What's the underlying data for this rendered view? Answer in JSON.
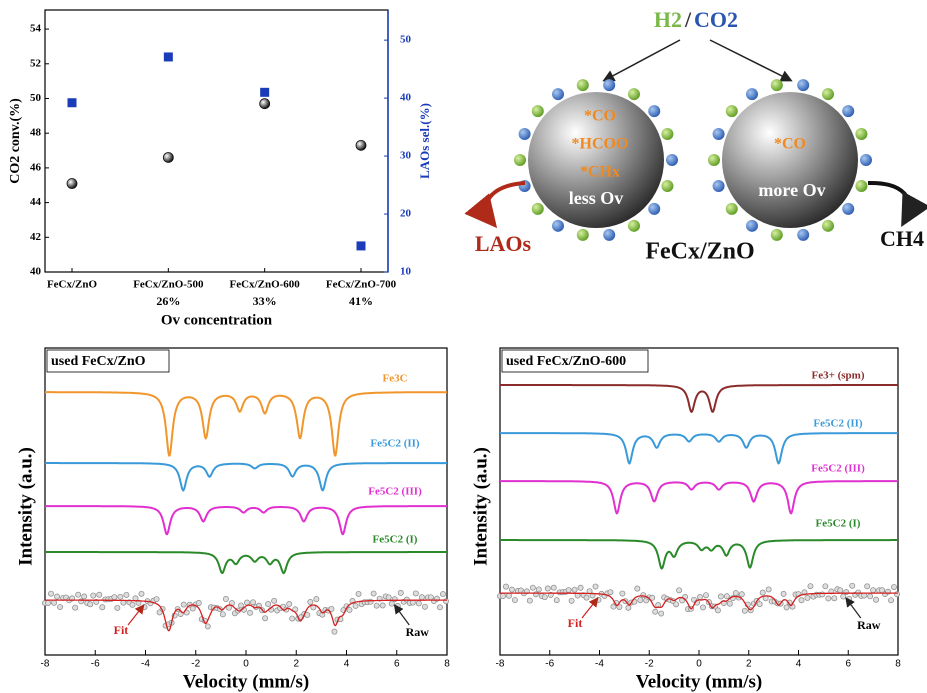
{
  "chart_data": [
    {
      "type": "scatter",
      "categories": [
        "FeCx/ZnO",
        "FeCx/ZnO-500",
        "FeCx/ZnO-600",
        "FeCx/ZnO-700"
      ],
      "category_sublabels": [
        "26%",
        "33%",
        "41%"
      ],
      "xlabel": "Ov concentration",
      "ylabel": "CO2 conv.(%)",
      "y2label": "LAOs sel.(%)",
      "ylim": [
        40,
        55.1
      ],
      "yticks": [
        40,
        42,
        44,
        46,
        48,
        50,
        52,
        54
      ],
      "y2lim": [
        10,
        55.2
      ],
      "y2ticks": [
        10,
        20,
        30,
        40,
        50
      ],
      "y2color": "#1a3cb8",
      "series": [
        {
          "color": "#111111",
          "marker": "sphere",
          "values": [
            45.1,
            46.6,
            49.7,
            47.3
          ]
        },
        {
          "color": "#1a3cb8",
          "marker": "square",
          "axis": "y2",
          "values": [
            39.2,
            47.1,
            41.0,
            14.5
          ]
        }
      ]
    },
    {
      "type": "spectrum",
      "title": "used FeCx/ZnO",
      "xlabel": "Velocity (mm/s)",
      "ylabel": "Intensity (a.u.)",
      "xlim": [
        -8,
        8
      ],
      "xticks": [
        -8,
        -6,
        -4,
        -2,
        0,
        2,
        4,
        6,
        8
      ],
      "series": [
        {
          "name": "Fe3C",
          "color": "#f0962c",
          "x": [
            -3.05,
            -1.6,
            -0.25,
            0.75,
            2.15,
            3.55
          ],
          "values": [
            63,
            45,
            18,
            20,
            45,
            63
          ]
        },
        {
          "name": "Fe5C2 (II)",
          "color": "#3a9ad9",
          "x": [
            -2.5,
            -1.45,
            0.35,
            1.85,
            3.05
          ],
          "values": [
            27,
            13,
            5,
            13,
            27
          ]
        },
        {
          "name": "Fe5C2 (III)",
          "color": "#e030d0",
          "x": [
            -3.15,
            -1.7,
            -0.1,
            0.7,
            2.3,
            3.85
          ],
          "values": [
            28,
            15,
            6,
            6,
            15,
            28
          ]
        },
        {
          "name": "Fe5C2 (I)",
          "color": "#2a8a2a",
          "x": [
            -0.95,
            -0.4,
            0.35,
            0.95,
            1.5
          ],
          "values": [
            20,
            10,
            8,
            10,
            20
          ]
        }
      ],
      "fit": {
        "name": "Fit",
        "color": "#d42020"
      },
      "raw": {
        "name": "Raw",
        "color": "#888888"
      }
    },
    {
      "type": "spectrum",
      "title": "used FeCx/ZnO-600",
      "xlabel": "Velocity (mm/s)",
      "ylabel": "Intensity (a.u.)",
      "xlim": [
        -8,
        8
      ],
      "xticks": [
        -8,
        -6,
        -4,
        -2,
        0,
        2,
        4,
        6,
        8
      ],
      "series": [
        {
          "name": "Fe3+ (spm)",
          "color": "#8b2c2c",
          "x": [
            -0.3,
            0.55
          ],
          "values": [
            26,
            26
          ]
        },
        {
          "name": "Fe5C2 (II)",
          "color": "#3a9ad9",
          "x": [
            -2.8,
            -1.7,
            -0.4,
            0.8,
            1.9,
            3.2
          ],
          "values": [
            30,
            14,
            8,
            8,
            14,
            30
          ]
        },
        {
          "name": "Fe5C2 (III)",
          "color": "#e030d0",
          "x": [
            -3.3,
            -1.8,
            -0.3,
            0.8,
            2.2,
            3.7
          ],
          "values": [
            32,
            20,
            8,
            8,
            20,
            32
          ]
        },
        {
          "name": "Fe5C2 (I)",
          "color": "#2a8a2a",
          "x": [
            -1.5,
            -1.0,
            0.1,
            0.5,
            1.1,
            2.05
          ],
          "values": [
            27,
            14,
            8,
            8,
            14,
            27
          ]
        }
      ],
      "fit": {
        "name": "Fit",
        "color": "#d42020"
      },
      "raw": {
        "name": "Raw",
        "color": "#888888"
      }
    }
  ],
  "diagram": {
    "feed": [
      "H2",
      "/",
      "CO2"
    ],
    "left_species": [
      "*CO",
      "*HCOO",
      "*CHx"
    ],
    "left_state": "less Ov",
    "right_species": [
      "*CO"
    ],
    "right_state": "more Ov",
    "left_product": "LAOs",
    "catalyst": "FeCx/ZnO",
    "right_product": "CH4"
  }
}
